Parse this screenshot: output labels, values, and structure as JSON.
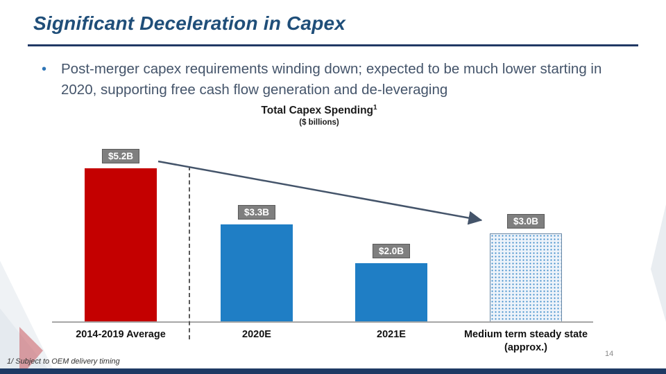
{
  "slide": {
    "title": "Significant Deceleration in Capex",
    "bullet_marker": "•",
    "bullet_text": "Post-merger capex requirements winding down; expected to be much lower starting in 2020, supporting free cash flow generation and de-leveraging",
    "footnote": "1/ Subject to OEM delivery timing",
    "page_number": "14"
  },
  "chart": {
    "title": "Total Capex Spending",
    "title_superscript": "1",
    "subtitle": "($ billions)"
  },
  "chart_data": {
    "type": "bar",
    "title": "Total Capex Spending",
    "subtitle": "($ billions)",
    "unit": "$ billions",
    "categories": [
      "2014-2019 Average",
      "2020E",
      "2021E",
      "Medium term steady state (approx.)"
    ],
    "values": [
      5.2,
      3.3,
      2.0,
      3.0
    ],
    "value_labels": [
      "$5.2B",
      "$3.3B",
      "$2.0B",
      "$3.0B"
    ],
    "bar_colors": [
      "#C40000",
      "#1F7EC5",
      "#1F7EC5",
      "pattern-dots"
    ],
    "ylim": [
      0,
      5.5
    ],
    "grid": false,
    "legend": "none",
    "annotations": [
      {
        "type": "dashed-separator",
        "after_category": "2014-2019 Average"
      },
      {
        "type": "trend-arrow",
        "from": "2014-2019 Average",
        "to": "Medium term steady state (approx.)",
        "direction": "down-right"
      }
    ]
  },
  "colors": {
    "title": "#1F4E79",
    "rule": "#203864",
    "bullet_text": "#44546A",
    "bar_red": "#C40000",
    "bar_blue": "#1F7EC5",
    "pattern_dot": "#3D8BC9",
    "value_box_bg": "#7F7F7F",
    "arrow": "#44546A",
    "footer_bar": "#1E3A64"
  }
}
